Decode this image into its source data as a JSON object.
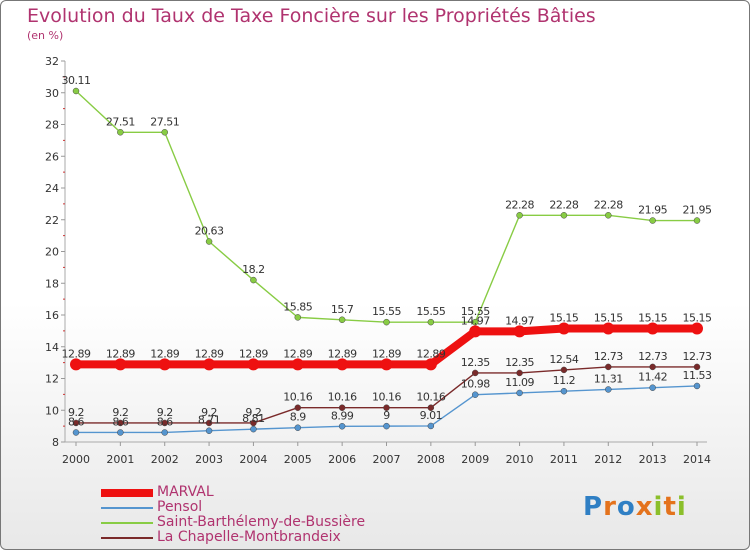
{
  "title": "Evolution du Taux de Taxe Foncière sur les Propriétés Bâties",
  "unit": "(en %)",
  "logo": {
    "p": "P",
    "r": "r",
    "o": "o",
    "x": "x",
    "i": "i",
    "t": "t",
    "i2": "i"
  },
  "chart_data": {
    "type": "line",
    "title": "Evolution du Taux de Taxe Foncière sur les Propriétés Bâties",
    "ylabel": "(en %)",
    "xlabel": "",
    "ylim": [
      8,
      32
    ],
    "yticks": [
      8,
      10,
      12,
      14,
      16,
      18,
      20,
      22,
      24,
      26,
      28,
      30,
      32
    ],
    "categories": [
      "2000",
      "2001",
      "2002",
      "2003",
      "2004",
      "2005",
      "2006",
      "2007",
      "2008",
      "2009",
      "2010",
      "2011",
      "2012",
      "2013",
      "2014"
    ],
    "series": [
      {
        "name": "MARVAL",
        "color": "#ee1111",
        "values": [
          12.89,
          12.89,
          12.89,
          12.89,
          12.89,
          12.89,
          12.89,
          12.89,
          12.89,
          14.97,
          14.97,
          15.15,
          15.15,
          15.15,
          15.15
        ],
        "labels": [
          "12.89",
          "12.89",
          "12.89",
          "12.89",
          "12.89",
          "12.89",
          "12.89",
          "12.89",
          "12.89",
          "14.97",
          "14.97",
          "15.15",
          "15.15",
          "15.15",
          "15.15"
        ]
      },
      {
        "name": "Pensol",
        "color": "#5595cf",
        "values": [
          8.6,
          8.6,
          8.6,
          8.71,
          8.81,
          8.9,
          8.99,
          9,
          9.01,
          10.98,
          11.09,
          11.2,
          11.31,
          11.42,
          11.53
        ],
        "labels": [
          "8.6",
          "8.6",
          "8.6",
          "8.71",
          "8.81",
          "8.9",
          "8.99",
          "9",
          "9.01",
          "10.98",
          "11.09",
          "11.2",
          "11.31",
          "11.42",
          "11.53"
        ]
      },
      {
        "name": "Saint-Barthélemy-de-Bussière",
        "color": "#88cc44",
        "values": [
          30.11,
          27.51,
          27.51,
          20.63,
          18.2,
          15.85,
          15.7,
          15.55,
          15.55,
          15.55,
          22.28,
          22.28,
          22.28,
          21.95,
          21.95
        ],
        "labels": [
          "30.11",
          "27.51",
          "27.51",
          "20.63",
          "18.2",
          "15.85",
          "15.7",
          "15.55",
          "15.55",
          "15.55",
          "22.28",
          "22.28",
          "22.28",
          "21.95",
          "21.95"
        ]
      },
      {
        "name": "La Chapelle-Montbrandeix",
        "color": "#7a2a2a",
        "values": [
          9.2,
          9.2,
          9.2,
          9.2,
          9.2,
          10.16,
          10.16,
          10.16,
          10.16,
          12.35,
          12.35,
          12.54,
          12.73,
          12.73,
          12.73
        ],
        "labels": [
          "9.2",
          "9.2",
          "9.2",
          "9.2",
          "9.2",
          "10.16",
          "10.16",
          "10.16",
          "10.16",
          "12.35",
          "12.35",
          "12.54",
          "12.73",
          "12.73",
          "12.73"
        ]
      }
    ],
    "legend_position": "bottom-left",
    "grid": false
  }
}
